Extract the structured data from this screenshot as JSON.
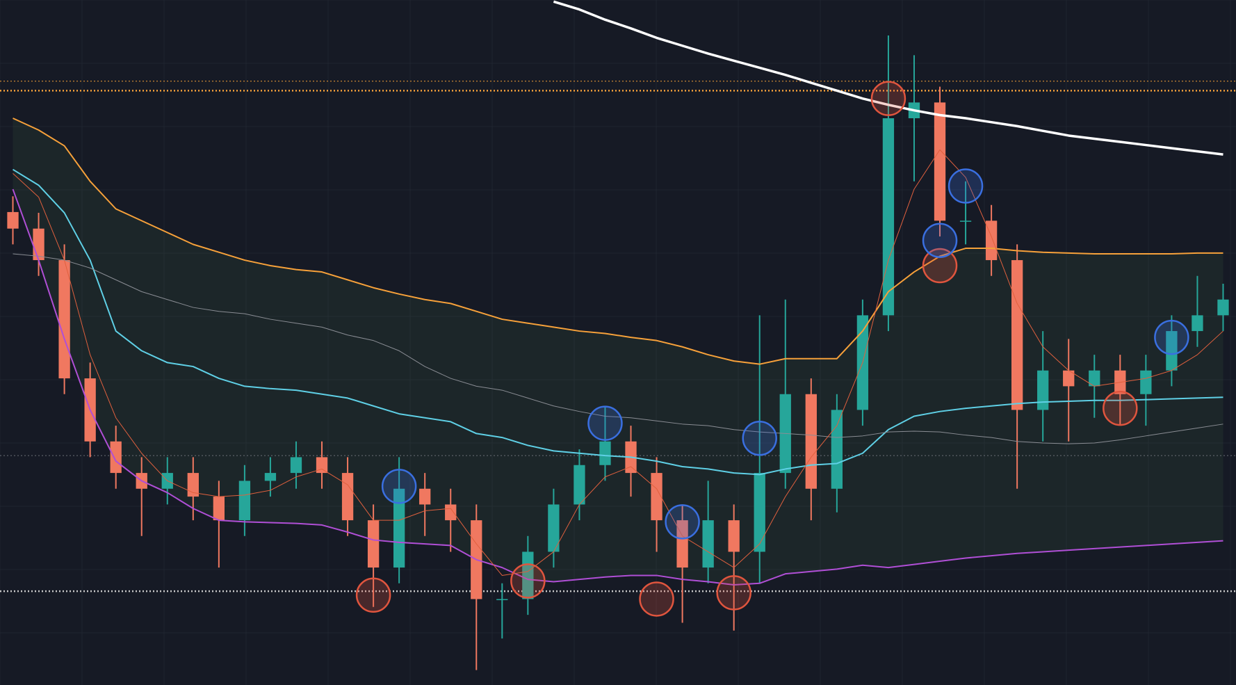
{
  "chart_data": {
    "type": "candlestick",
    "ylim": [
      0,
      869
    ],
    "grid": true,
    "background": "#161a25",
    "up_color": "#26a69a",
    "down_color": "#f07860",
    "open": [
      600,
      579,
      539,
      389,
      309,
      269,
      249,
      269,
      239,
      209,
      259,
      269,
      289,
      269,
      209,
      149,
      249,
      229,
      209,
      109,
      109,
      169,
      229,
      279,
      309,
      269,
      209,
      149,
      209,
      169,
      269,
      369,
      249,
      349,
      469,
      719,
      739,
      589,
      589,
      539,
      349,
      399,
      379,
      399,
      369,
      399,
      449,
      469
    ],
    "high": [
      620,
      599,
      559,
      409,
      329,
      289,
      289,
      289,
      259,
      279,
      289,
      309,
      309,
      289,
      229,
      289,
      269,
      249,
      229,
      129,
      189,
      249,
      299,
      354,
      329,
      289,
      229,
      259,
      229,
      469,
      489,
      389,
      369,
      489,
      824,
      799,
      759,
      639,
      609,
      559,
      449,
      439,
      419,
      419,
      419,
      469,
      519,
      509
    ],
    "low": [
      559,
      519,
      369,
      289,
      249,
      189,
      229,
      209,
      149,
      189,
      239,
      249,
      249,
      189,
      99,
      129,
      189,
      169,
      19,
      59,
      89,
      149,
      209,
      259,
      239,
      169,
      79,
      129,
      69,
      129,
      249,
      209,
      219,
      329,
      449,
      639,
      569,
      559,
      519,
      249,
      309,
      309,
      339,
      329,
      329,
      379,
      429,
      449
    ],
    "close": [
      579,
      539,
      389,
      309,
      269,
      249,
      269,
      239,
      209,
      259,
      269,
      289,
      269,
      209,
      149,
      249,
      229,
      209,
      109,
      109,
      169,
      229,
      279,
      309,
      269,
      209,
      149,
      209,
      169,
      269,
      369,
      249,
      349,
      469,
      719,
      739,
      589,
      589,
      539,
      349,
      399,
      379,
      399,
      369,
      399,
      449,
      469,
      489
    ],
    "series": [
      {
        "color": "#f7a13a",
        "width": 2,
        "values": [
          719,
          704,
          684,
          639,
          604,
          589,
          574,
          559,
          549,
          539,
          532,
          527,
          524,
          514,
          504,
          496,
          489,
          484,
          474,
          464,
          459,
          454,
          449,
          446,
          441,
          437,
          429,
          419,
          411,
          407,
          414,
          414,
          414,
          449,
          499,
          524,
          544,
          554,
          554,
          551,
          549,
          548,
          547,
          547,
          547,
          547,
          548,
          548
        ]
      },
      {
        "color": "#5fd0e6",
        "width": 2,
        "values": [
          654,
          634,
          599,
          539,
          449,
          424,
          409,
          404,
          389,
          379,
          376,
          374,
          369,
          364,
          354,
          344,
          339,
          334,
          319,
          314,
          304,
          297,
          294,
          291,
          289,
          284,
          277,
          274,
          269,
          267,
          274,
          279,
          281,
          294,
          324,
          341,
          347,
          351,
          354,
          357,
          359,
          360,
          361,
          361,
          362,
          363,
          364,
          365
        ]
      },
      {
        "color": "#8a8d94",
        "width": 1,
        "values": [
          547,
          544,
          539,
          529,
          514,
          499,
          489,
          479,
          474,
          471,
          464,
          459,
          454,
          444,
          437,
          424,
          404,
          389,
          379,
          374,
          364,
          354,
          347,
          341,
          339,
          335,
          331,
          329,
          324,
          321,
          319,
          317,
          314,
          316,
          321,
          322,
          321,
          317,
          314,
          309,
          307,
          306,
          307,
          311,
          316,
          321,
          326,
          331
        ]
      },
      {
        "color": "#b04fd6",
        "width": 2,
        "values": [
          629,
          539,
          439,
          349,
          284,
          259,
          244,
          224,
          209,
          207,
          206,
          205,
          203,
          194,
          184,
          181,
          179,
          177,
          159,
          149,
          134,
          131,
          134,
          137,
          139,
          139,
          134,
          131,
          127,
          129,
          141,
          144,
          147,
          152,
          149,
          153,
          157,
          161,
          164,
          167,
          169,
          171,
          173,
          175,
          177,
          179,
          181,
          183
        ]
      },
      {
        "color": "#e0603e",
        "width": 1,
        "values": [
          649,
          619,
          539,
          419,
          339,
          294,
          259,
          244,
          239,
          241,
          247,
          264,
          274,
          254,
          209,
          209,
          221,
          224,
          179,
          139,
          144,
          169,
          229,
          264,
          277,
          249,
          189,
          169,
          149,
          179,
          239,
          289,
          329,
          409,
          539,
          629,
          679,
          644,
          569,
          484,
          429,
          399,
          379,
          384,
          389,
          399,
          419,
          449
        ]
      },
      {
        "color": "#ffffff",
        "width": 3.5,
        "values": [
          null,
          null,
          null,
          null,
          null,
          null,
          null,
          null,
          null,
          null,
          null,
          null,
          null,
          null,
          null,
          null,
          null,
          null,
          null,
          null,
          null,
          867,
          857,
          844,
          833,
          821,
          811,
          801,
          792,
          783,
          774,
          764,
          754,
          744,
          736,
          729,
          723,
          719,
          714,
          709,
          703,
          697,
          693,
          689,
          685,
          681,
          677,
          673
        ]
      }
    ],
    "band_fill": "rgba(70,110,70,0.14)",
    "hlines": [
      {
        "value": 766,
        "color": "#f7a13a",
        "width": 1
      },
      {
        "value": 754,
        "color": "#f7a13a",
        "width": 2.5
      },
      {
        "value": 291,
        "color": "#6b6f78",
        "width": 1
      },
      {
        "value": 119,
        "color": "#c8c8c8",
        "width": 2.5
      }
    ],
    "signals": [
      {
        "color": "#e0553e",
        "x": [
          34,
          14,
          20,
          25,
          28,
          36,
          43
        ],
        "values": [
          744,
          114,
          132,
          109,
          117,
          532,
          351
        ]
      },
      {
        "color": "#3a6fe0",
        "x": [
          15,
          23,
          26,
          29,
          36,
          37,
          45
        ],
        "values": [
          252,
          332,
          207,
          313,
          564,
          633,
          441
        ]
      }
    ]
  }
}
